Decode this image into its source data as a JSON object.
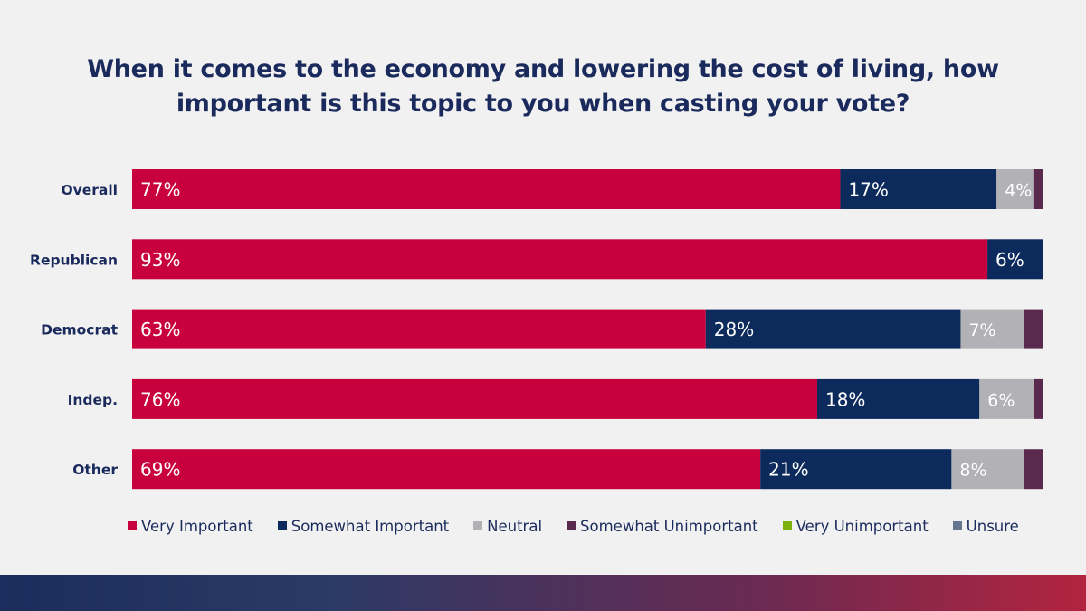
{
  "title_lines": [
    "When it comes to the economy and lowering the cost of living, how",
    "important is this topic to you when casting your vote?"
  ],
  "chart_data": {
    "type": "bar",
    "orientation": "horizontal",
    "stacked": true,
    "categories": [
      "Overall",
      "Republican",
      "Democrat",
      "Indep.",
      "Other"
    ],
    "series": [
      {
        "name": "Very Important",
        "color": "#c8003c",
        "values": [
          77,
          93,
          63,
          76,
          69
        ],
        "labels": [
          "77%",
          "93%",
          "63%",
          "76%",
          "69%"
        ]
      },
      {
        "name": "Somewhat Important",
        "color": "#0d2a5c",
        "values": [
          17,
          6,
          28,
          18,
          21
        ],
        "labels": [
          "17%",
          "6%",
          "28%",
          "18%",
          "21%"
        ]
      },
      {
        "name": "Neutral",
        "color": "#b1b1b6",
        "values": [
          4,
          0,
          7,
          6,
          8
        ],
        "labels": [
          "4%",
          "",
          "7%",
          "6%",
          "8%"
        ]
      },
      {
        "name": "Somewhat Unimportant",
        "color": "#5a2a4e",
        "values": [
          1,
          0,
          2,
          1,
          2
        ],
        "labels": [
          "",
          "",
          "",
          "",
          ""
        ]
      },
      {
        "name": "Very Unimportant",
        "color": "#7cb00f",
        "values": [
          0,
          0,
          0,
          0,
          0
        ],
        "labels": [
          "",
          "",
          "",
          "",
          ""
        ]
      },
      {
        "name": "Unsure",
        "color": "#64758f",
        "values": [
          0,
          0,
          0,
          0,
          0
        ],
        "labels": [
          "",
          "",
          "",
          "",
          ""
        ]
      }
    ],
    "xlim": [
      0,
      100
    ],
    "grid": false,
    "legend_position": "bottom"
  }
}
